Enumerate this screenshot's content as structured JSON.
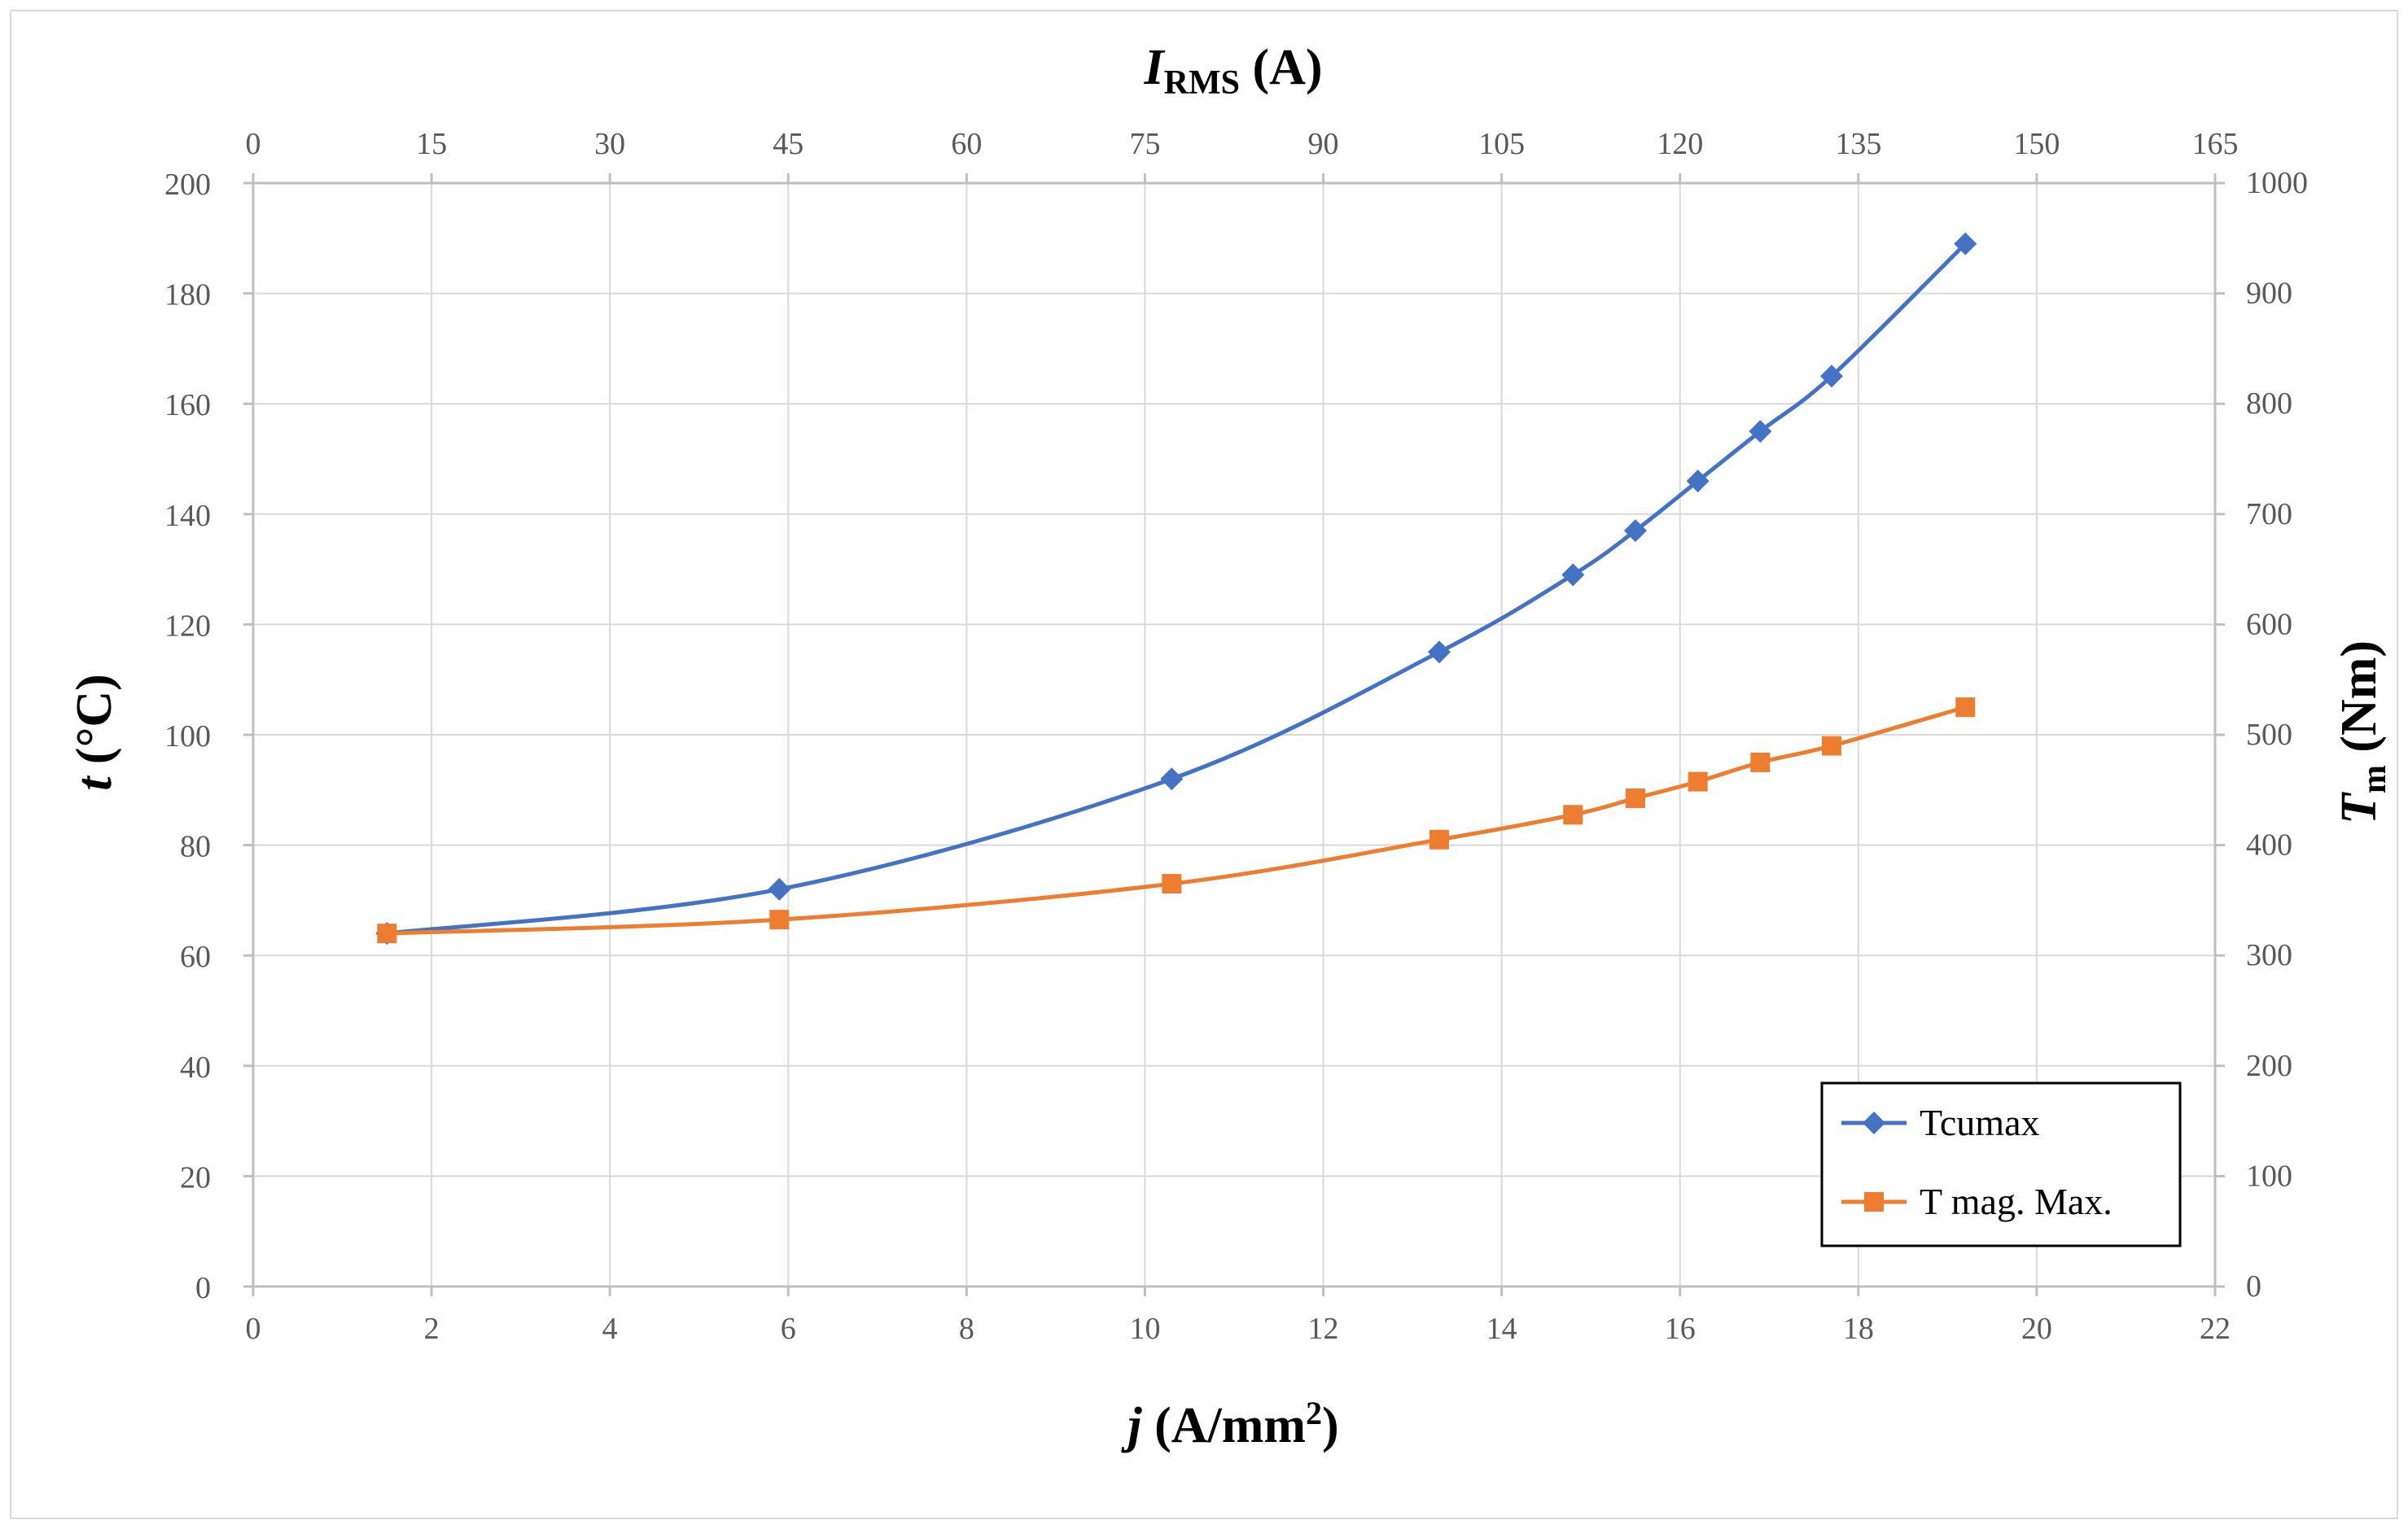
{
  "chart_data": {
    "type": "line",
    "x": [
      1.5,
      5.9,
      10.3,
      13.3,
      14.8,
      15.5,
      16.2,
      16.9,
      17.7,
      19.2
    ],
    "series": [
      {
        "name": "Tcumax",
        "color": "#4472c4",
        "marker": "diamond",
        "values": [
          64,
          72,
          92,
          115,
          129,
          137,
          146,
          155,
          165,
          189
        ]
      },
      {
        "name": "T mag. Max.",
        "color": "#ed7d31",
        "marker": "square",
        "values": [
          64,
          66.5,
          73,
          81,
          85.5,
          88.5,
          91.5,
          95,
          98,
          105
        ]
      }
    ],
    "xlim": [
      0,
      22
    ],
    "ylim": [
      0,
      200
    ],
    "y2lim": [
      0,
      1000
    ],
    "x2lim": [
      0,
      165
    ],
    "xticks": [
      "0",
      "2",
      "4",
      "6",
      "8",
      "10",
      "12",
      "14",
      "16",
      "18",
      "20",
      "22"
    ],
    "yticks": [
      "0",
      "20",
      "40",
      "60",
      "80",
      "100",
      "120",
      "140",
      "160",
      "180",
      "200"
    ],
    "y2ticks": [
      "0",
      "100",
      "200",
      "300",
      "400",
      "500",
      "600",
      "700",
      "800",
      "900",
      "1000"
    ],
    "x2ticks": [
      "0",
      "15",
      "30",
      "45",
      "60",
      "75",
      "90",
      "105",
      "120",
      "135",
      "150",
      "165"
    ],
    "xlabel": {
      "italic": "j",
      "rest": " (A/mm",
      "sup": "2",
      "end": ")"
    },
    "ylabel": {
      "italic": "t",
      "rest": " (°C)"
    },
    "y2label": {
      "italic": "T",
      "sub": "m",
      "rest": " (Nm)"
    },
    "x2label": {
      "italic": "I",
      "sub": "RMS",
      "rest": " (A)"
    },
    "grid": true,
    "legend_position": "bottom-right",
    "gridline_color": "#d9d9d9",
    "axis_color": "#bfbfbf"
  }
}
